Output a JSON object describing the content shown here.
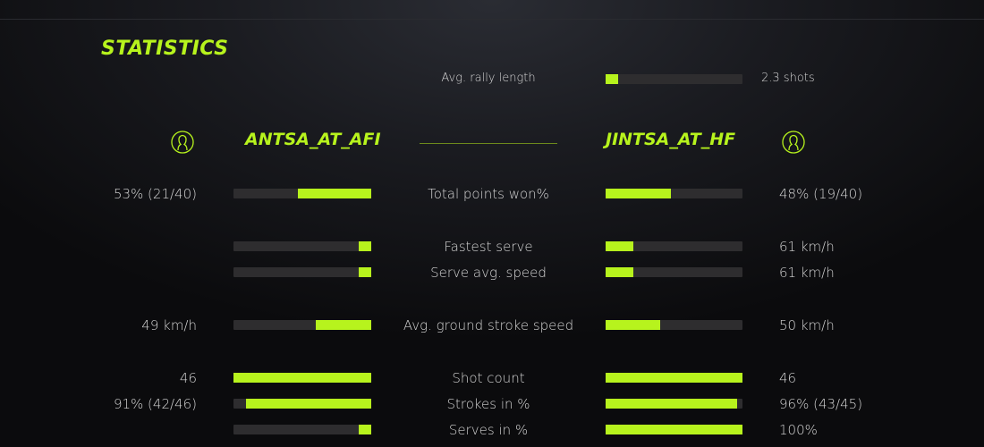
{
  "title": "STATISTICS",
  "accent": "#b7f31d",
  "rally": {
    "label": "Avg. rally length",
    "value": "2.3 shots",
    "fraction": 0.09
  },
  "players": {
    "left": {
      "name": "ANTSA_AT_AFI",
      "icon": "user-circle-icon"
    },
    "right": {
      "name": "JINTSA_AT_HF",
      "icon": "user-circle-icon"
    }
  },
  "stats": [
    {
      "label": "Total points won%",
      "left": "53% (21/40)",
      "right": "48% (19/40)",
      "left_fraction": 0.53,
      "right_fraction": 0.48
    },
    {
      "label": "Fastest serve",
      "left": "",
      "right": "61 km/h",
      "left_fraction": 0.09,
      "right_fraction": 0.2
    },
    {
      "label": "Serve avg. speed",
      "left": "",
      "right": "61 km/h",
      "left_fraction": 0.09,
      "right_fraction": 0.2
    },
    {
      "label": "Avg. ground stroke speed",
      "left": "49 km/h",
      "right": "50 km/h",
      "left_fraction": 0.4,
      "right_fraction": 0.4
    },
    {
      "label": "Shot count",
      "left": "46",
      "right": "46",
      "left_fraction": 1.0,
      "right_fraction": 1.0
    },
    {
      "label": "Strokes in %",
      "left": "91% (42/46)",
      "right": "96% (43/45)",
      "left_fraction": 0.91,
      "right_fraction": 0.96
    },
    {
      "label": "Serves in %",
      "left": "",
      "right": "100%",
      "left_fraction": 0.09,
      "right_fraction": 1.0
    }
  ]
}
